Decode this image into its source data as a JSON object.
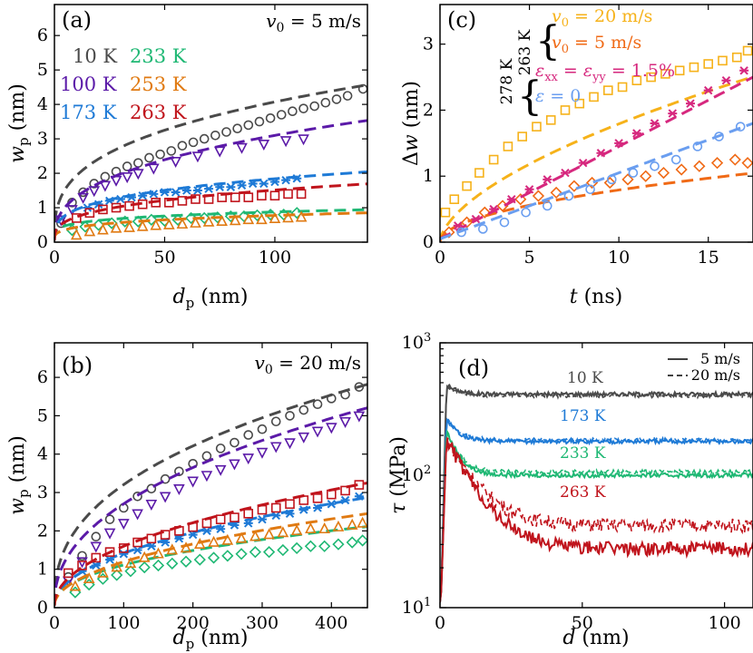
{
  "colors": {
    "k10": "#4a4a4a",
    "k100": "#5b1aa8",
    "k173": "#1e7ad6",
    "k233": "#1fb874",
    "k253": "#e07a12",
    "k263": "#c0141c",
    "v20": "#f6b21a",
    "v5": "#f06a16",
    "strain": "#d6287e",
    "nostrain": "#6a9ef0"
  },
  "chart_data": [
    {
      "id": "a",
      "type": "scatter",
      "panel_label": "(a)",
      "annotation": "v0 = 5 m/s",
      "xlabel": "d_p (nm)",
      "ylabel": "w_p (nm)",
      "xlim": [
        0,
        142
      ],
      "ylim": [
        0,
        6.9
      ],
      "xticks": [
        "0",
        "50",
        "100"
      ],
      "yticks": [
        "0",
        "1",
        "2",
        "3",
        "4",
        "5",
        "6"
      ],
      "legend": [
        "10 K",
        "233 K",
        "100 K",
        "253 K",
        "173 K",
        "263 K"
      ],
      "series": [
        {
          "name": "10 K",
          "marker": "circle",
          "fit": [
            0.05,
            0.88,
            0.33
          ],
          "x": [
            3,
            8,
            13,
            18,
            23,
            28,
            33,
            38,
            43,
            48,
            53,
            58,
            63,
            68,
            73,
            78,
            83,
            88,
            93,
            98,
            103,
            108,
            113,
            118,
            123,
            128,
            133,
            140
          ],
          "y": [
            0.55,
            1.15,
            1.45,
            1.7,
            1.9,
            2.05,
            2.2,
            2.3,
            2.45,
            2.55,
            2.65,
            2.8,
            2.9,
            3.0,
            3.1,
            3.2,
            3.3,
            3.4,
            3.5,
            3.6,
            3.7,
            3.8,
            3.88,
            3.95,
            4.05,
            4.15,
            4.25,
            4.45
          ]
        },
        {
          "name": "100 K",
          "marker": "triangle-down",
          "fit": [
            0.05,
            0.53,
            0.38
          ],
          "x": [
            3,
            8,
            13,
            18,
            23,
            28,
            33,
            38,
            45,
            55,
            65,
            75,
            85,
            95,
            105,
            113
          ],
          "y": [
            0.65,
            0.95,
            1.3,
            1.5,
            1.65,
            1.8,
            1.9,
            2.0,
            2.15,
            2.35,
            2.5,
            2.65,
            2.75,
            2.85,
            2.95,
            3.0
          ]
        },
        {
          "name": "173 K",
          "marker": "asterisk",
          "fit": [
            0.05,
            0.45,
            0.3
          ],
          "x": [
            15,
            20,
            25,
            30,
            35,
            40,
            45,
            50,
            55,
            60,
            65,
            70,
            75,
            80,
            85,
            90,
            95,
            100,
            105,
            110
          ],
          "y": [
            1.0,
            1.1,
            1.2,
            1.25,
            1.3,
            1.35,
            1.4,
            1.45,
            1.45,
            1.5,
            1.5,
            1.55,
            1.6,
            1.6,
            1.65,
            1.7,
            1.7,
            1.75,
            1.8,
            1.85
          ]
        },
        {
          "name": "233 K",
          "marker": "diamond",
          "fit": [
            0.05,
            0.3,
            0.22
          ],
          "x": [
            8,
            14,
            20,
            26,
            32,
            38,
            44,
            50,
            56,
            62,
            68,
            74,
            80,
            86,
            92,
            98,
            104,
            110
          ],
          "y": [
            0.35,
            0.45,
            0.5,
            0.55,
            0.6,
            0.6,
            0.65,
            0.62,
            0.65,
            0.7,
            0.7,
            0.72,
            0.75,
            0.75,
            0.78,
            0.8,
            0.8,
            0.85
          ]
        },
        {
          "name": "253 K",
          "marker": "triangle-up",
          "fit": [
            0.05,
            0.2,
            0.28
          ],
          "x": [
            10,
            16,
            22,
            28,
            34,
            40,
            46,
            52,
            58,
            64,
            70,
            76,
            82,
            88,
            94,
            100,
            106,
            112
          ],
          "y": [
            0.2,
            0.3,
            0.35,
            0.4,
            0.42,
            0.45,
            0.48,
            0.5,
            0.52,
            0.55,
            0.58,
            0.6,
            0.62,
            0.65,
            0.65,
            0.68,
            0.7,
            0.72
          ]
        },
        {
          "name": "263 K",
          "marker": "square",
          "fit": [
            0.05,
            0.32,
            0.33
          ],
          "x": [
            10,
            16,
            22,
            28,
            34,
            40,
            46,
            52,
            58,
            64,
            70,
            76,
            82,
            88,
            94,
            100,
            106,
            112
          ],
          "y": [
            0.7,
            0.85,
            0.95,
            1.0,
            1.05,
            1.1,
            1.15,
            1.15,
            1.2,
            1.25,
            1.25,
            1.3,
            1.3,
            1.3,
            1.35,
            1.35,
            1.4,
            1.4
          ]
        }
      ]
    },
    {
      "id": "b",
      "type": "scatter",
      "panel_label": "(b)",
      "annotation": "v0 = 20 m/s",
      "xlabel": "d_p (nm)",
      "ylabel": "w_p (nm)",
      "xlim": [
        0,
        452
      ],
      "ylim": [
        0,
        6.9
      ],
      "xticks": [
        "0",
        "100",
        "200",
        "300",
        "400"
      ],
      "yticks": [
        "0",
        "1",
        "2",
        "3",
        "4",
        "5",
        "6"
      ],
      "series": [
        {
          "name": "10 K",
          "marker": "circle",
          "fit": [
            0.05,
            0.5,
            0.4
          ],
          "x": [
            20,
            40,
            60,
            80,
            100,
            120,
            140,
            160,
            180,
            200,
            220,
            240,
            260,
            280,
            300,
            320,
            340,
            360,
            380,
            400,
            420,
            440
          ],
          "y": [
            0.8,
            1.35,
            1.85,
            2.3,
            2.6,
            2.9,
            3.1,
            3.35,
            3.55,
            3.75,
            3.95,
            4.15,
            4.3,
            4.5,
            4.65,
            4.85,
            5.0,
            5.15,
            5.3,
            5.45,
            5.55,
            5.75
          ]
        },
        {
          "name": "100 K",
          "marker": "triangle-down",
          "fit": [
            0.05,
            0.35,
            0.44
          ],
          "x": [
            20,
            40,
            60,
            80,
            100,
            120,
            140,
            160,
            180,
            200,
            220,
            240,
            260,
            280,
            300,
            320,
            340,
            360,
            380,
            400,
            420,
            440
          ],
          "y": [
            0.7,
            1.2,
            1.6,
            1.95,
            2.2,
            2.45,
            2.7,
            2.9,
            3.1,
            3.3,
            3.45,
            3.6,
            3.75,
            3.9,
            4.05,
            4.2,
            4.3,
            4.45,
            4.6,
            4.7,
            4.85,
            5.0
          ]
        },
        {
          "name": "173 K",
          "marker": "asterisk",
          "fit": [
            0.05,
            0.15,
            0.48
          ],
          "x": [
            40,
            60,
            80,
            100,
            120,
            140,
            160,
            180,
            200,
            220,
            240,
            260,
            280,
            300,
            320,
            340,
            360,
            380,
            400,
            420,
            440
          ],
          "y": [
            0.95,
            1.1,
            1.25,
            1.4,
            1.5,
            1.6,
            1.7,
            1.8,
            1.9,
            2.0,
            2.05,
            2.15,
            2.2,
            2.3,
            2.4,
            2.45,
            2.55,
            2.6,
            2.7,
            2.8,
            2.9
          ]
        },
        {
          "name": "233 K",
          "marker": "diamond",
          "fit": [
            0.05,
            0.14,
            0.44
          ],
          "x": [
            30,
            50,
            70,
            90,
            110,
            130,
            150,
            170,
            190,
            210,
            230,
            250,
            270,
            290,
            310,
            330,
            350,
            370,
            390,
            410,
            430,
            445
          ],
          "y": [
            0.4,
            0.6,
            0.75,
            0.85,
            0.95,
            1.05,
            1.1,
            1.15,
            1.2,
            1.25,
            1.3,
            1.35,
            1.4,
            1.45,
            1.45,
            1.5,
            1.55,
            1.6,
            1.6,
            1.65,
            1.7,
            1.75
          ]
        },
        {
          "name": "253 K",
          "marker": "triangle-up",
          "fit": [
            0.05,
            0.12,
            0.49
          ],
          "x": [
            30,
            50,
            70,
            90,
            110,
            130,
            150,
            170,
            190,
            210,
            230,
            250,
            270,
            290,
            310,
            330,
            350,
            370,
            390,
            410,
            430,
            445
          ],
          "y": [
            0.55,
            0.75,
            0.9,
            1.05,
            1.15,
            1.3,
            1.4,
            1.5,
            1.55,
            1.65,
            1.7,
            1.75,
            1.8,
            1.85,
            1.9,
            1.95,
            2.0,
            2.05,
            2.05,
            2.1,
            2.15,
            2.2
          ]
        },
        {
          "name": "263 K",
          "marker": "square",
          "fit": [
            0.05,
            0.17,
            0.48
          ],
          "x": [
            20,
            40,
            60,
            80,
            100,
            120,
            140,
            160,
            180,
            200,
            220,
            240,
            260,
            280,
            300,
            320,
            340,
            360,
            380,
            400,
            420,
            440
          ],
          "y": [
            0.9,
            1.1,
            1.3,
            1.45,
            1.55,
            1.7,
            1.8,
            1.9,
            2.0,
            2.1,
            2.2,
            2.3,
            2.35,
            2.45,
            2.55,
            2.6,
            2.7,
            2.8,
            2.85,
            2.95,
            3.05,
            3.2
          ]
        }
      ]
    },
    {
      "id": "c",
      "type": "scatter",
      "panel_label": "(c)",
      "xlabel": "t (ns)",
      "ylabel": "Δw (nm)",
      "xlim": [
        0,
        17.5
      ],
      "ylim": [
        0,
        3.6
      ],
      "xticks": [
        "0",
        "5",
        "10",
        "15"
      ],
      "yticks": [
        "0",
        "1",
        "2",
        "3"
      ],
      "legend_group_labels": [
        "263 K",
        "278 K"
      ],
      "legend": [
        "v0 = 20 m/s",
        "v0 =   5 m/s",
        "εxx = εyy = 1.5%",
        "ε    = 0"
      ],
      "series": [
        {
          "name": "v0 = 20 m/s",
          "marker": "square",
          "fit": [
            0.0,
            0.45,
            0.6
          ],
          "x": [
            0.3,
            0.8,
            1.5,
            2.2,
            3.0,
            3.8,
            4.6,
            5.4,
            6.2,
            7.0,
            7.8,
            8.6,
            9.4,
            10.2,
            11.0,
            11.8,
            12.6,
            13.4,
            14.2,
            15.0,
            15.8,
            16.6,
            17.2
          ],
          "y": [
            0.45,
            0.65,
            0.85,
            1.05,
            1.25,
            1.45,
            1.6,
            1.75,
            1.85,
            2.0,
            2.1,
            2.2,
            2.3,
            2.35,
            2.45,
            2.5,
            2.55,
            2.6,
            2.65,
            2.7,
            2.75,
            2.8,
            2.9
          ]
        },
        {
          "name": "v0 =   5 m/s",
          "marker": "diamond",
          "fit": [
            0.0,
            0.25,
            0.5
          ],
          "x": [
            0.5,
            1.5,
            2.5,
            3.5,
            4.5,
            5.5,
            6.5,
            7.5,
            8.5,
            9.5,
            10.5,
            11.5,
            12.5,
            13.5,
            14.5,
            15.5,
            16.5,
            17.2
          ],
          "y": [
            0.15,
            0.3,
            0.45,
            0.55,
            0.65,
            0.7,
            0.75,
            0.85,
            0.9,
            0.9,
            0.95,
            1.0,
            1.05,
            1.1,
            1.15,
            1.2,
            1.25,
            1.2
          ]
        },
        {
          "name": "εxx = εyy = 1.5%",
          "marker": "asterisk",
          "fit": [
            0.05,
            0.14,
            1.0
          ],
          "x": [
            1.0,
            2.0,
            3.0,
            4.0,
            5.0,
            6.0,
            7.0,
            8.0,
            9.0,
            10.0,
            11.0,
            12.0,
            13.0,
            14.0,
            15.0,
            16.0,
            17.0
          ],
          "y": [
            0.25,
            0.35,
            0.5,
            0.65,
            0.8,
            0.95,
            1.05,
            1.2,
            1.35,
            1.5,
            1.65,
            1.8,
            1.95,
            2.1,
            2.3,
            2.45,
            2.6
          ]
        },
        {
          "name": "ε    = 0",
          "marker": "circle",
          "fit": [
            0.05,
            0.1,
            1.0
          ],
          "x": [
            1.2,
            2.4,
            3.6,
            4.8,
            6.0,
            7.2,
            8.4,
            9.6,
            10.8,
            12.0,
            13.2,
            14.4,
            15.6,
            16.8
          ],
          "y": [
            0.15,
            0.2,
            0.3,
            0.45,
            0.55,
            0.7,
            0.8,
            0.95,
            1.05,
            1.15,
            1.25,
            1.45,
            1.6,
            1.75
          ]
        }
      ]
    },
    {
      "id": "d",
      "type": "line",
      "panel_label": "(d)",
      "xlabel": "d (nm)",
      "ylabel": "τ (MPa)",
      "xlim": [
        0,
        110
      ],
      "ylog": true,
      "ylim": [
        10,
        1000
      ],
      "xticks": [
        "0",
        "50",
        "100"
      ],
      "yticks": [
        "10^1",
        "10^2",
        "10^3"
      ],
      "legend": [
        "5 m/s",
        "20 m/s"
      ],
      "series": [
        {
          "name": "10 K",
          "plateau_5": 410,
          "plateau_20": 400,
          "peak": 480
        },
        {
          "name": "173 K",
          "plateau_5": 180,
          "plateau_20": 185,
          "peak": 270
        },
        {
          "name": "233 K",
          "plateau_5": 100,
          "plateau_20": 106,
          "peak": 220
        },
        {
          "name": "263 K",
          "plateau_5": 28,
          "plateau_20": 42,
          "peak": 190
        }
      ]
    }
  ]
}
